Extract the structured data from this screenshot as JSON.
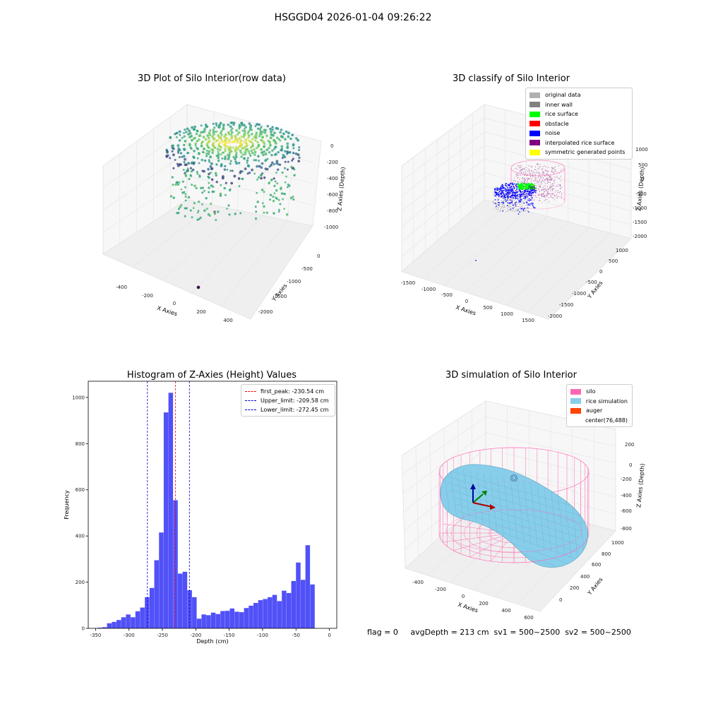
{
  "suptitle": "HSGGD04 2026-01-04 09:26:22",
  "footer": "flag = 0     avgDepth = 213 cm  sv1 = 500~2500  sv2 = 500~2500",
  "chart_data": [
    {
      "type": "scatter",
      "title": "3D Plot of Silo Interior(row data)",
      "xlabel": "X Axies",
      "ylabel": "Y Axies",
      "zlabel": "Z Axies (Depth)",
      "x_ticks": [
        "-400",
        "-200",
        "0",
        "200",
        "400"
      ],
      "y_ticks": [
        "0",
        "-500",
        "-1000",
        "-1500",
        "-2000"
      ],
      "z_ticks": [
        "0",
        "-200",
        "-400",
        "-600",
        "-800",
        "-1000"
      ],
      "colormap": "viridis"
    },
    {
      "type": "scatter",
      "title": "3D classify of Silo Interior",
      "xlabel": "X Axies",
      "ylabel": "Y Axies",
      "zlabel": "Z Axies (Depth)",
      "x_ticks": [
        "-1500",
        "-1000",
        "-500",
        "0",
        "500",
        "1000",
        "1500"
      ],
      "y_ticks": [
        "1000",
        "500",
        "0",
        "-500",
        "-1000",
        "-1500",
        "-2000"
      ],
      "z_ticks": [
        "1000",
        "500",
        "0",
        "-500",
        "-1000",
        "-1500",
        "-2000"
      ],
      "legend": [
        {
          "label": "original data",
          "color": "#b0b0b0"
        },
        {
          "label": "inner wall",
          "color": "#808080"
        },
        {
          "label": "rice surface",
          "color": "#00ff00"
        },
        {
          "label": "obstacle",
          "color": "#ff0000"
        },
        {
          "label": "noise",
          "color": "#0000ff"
        },
        {
          "label": "interpolated rice surface",
          "color": "#800080"
        },
        {
          "label": "symmetric generated points",
          "color": "#ffff00"
        }
      ]
    },
    {
      "type": "bar",
      "title": "Histogram of Z-Axies (Height) Values",
      "xlabel": "Depth (cm)",
      "ylabel": "Frequency",
      "xlim": [
        -361,
        11
      ],
      "ylim": [
        0,
        1070
      ],
      "x_ticks": [
        -350,
        -300,
        -250,
        -200,
        -150,
        -100,
        -50,
        0
      ],
      "y_ticks": [
        0,
        200,
        400,
        600,
        800,
        1000
      ],
      "bin_start": -347,
      "bin_width": 7.07,
      "values": [
        3,
        5,
        22,
        28,
        36,
        48,
        60,
        48,
        74,
        90,
        135,
        175,
        295,
        415,
        935,
        1020,
        555,
        237,
        245,
        165,
        135,
        42,
        60,
        57,
        68,
        62,
        75,
        76,
        86,
        72,
        70,
        88,
        98,
        110,
        122,
        127,
        135,
        145,
        118,
        163,
        153,
        205,
        285,
        210,
        360,
        190
      ],
      "bar_color": "#4848f8",
      "vlines": [
        {
          "label": "first_peak: -230.54 cm",
          "x": -230.54,
          "color": "#ff0000"
        },
        {
          "label": "Upper_limit: -209.58 cm",
          "x": -209.58,
          "color": "#0000cc"
        },
        {
          "label": "Lower_limit: -272.45 cm",
          "x": -272.45,
          "color": "#0000cc"
        }
      ]
    },
    {
      "type": "surface",
      "title": "3D simulation of Silo Interior",
      "xlabel": "X Axies",
      "ylabel": "Y Axies",
      "zlabel": "Z Axies (Depth)",
      "x_ticks": [
        "-400",
        "-200",
        "0",
        "200",
        "400",
        "600"
      ],
      "y_ticks": [
        "0",
        "200",
        "400",
        "600",
        "800",
        "1000"
      ],
      "z_ticks": [
        "200",
        "0",
        "-200",
        "-400",
        "-600",
        "-800"
      ],
      "legend": [
        {
          "label": "silo",
          "color": "#ff69b4"
        },
        {
          "label": "rice simulation",
          "color": "#87ceeb"
        },
        {
          "label": "auger",
          "color": "#ff4500"
        },
        {
          "label": "center(76,488)",
          "color": ""
        }
      ]
    }
  ]
}
